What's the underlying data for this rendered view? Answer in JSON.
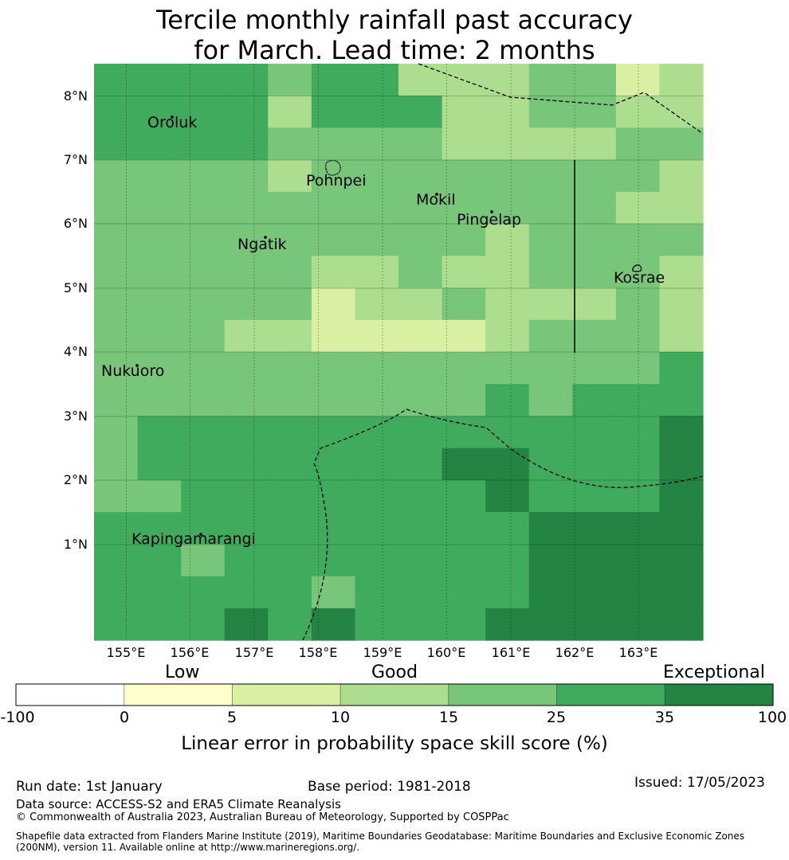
{
  "title": {
    "line1": "Tercile monthly rainfall past accuracy",
    "line2": "for March. Lead time: 2 months"
  },
  "map": {
    "lat_labels": [
      "8°N",
      "7°N",
      "6°N",
      "5°N",
      "4°N",
      "3°N",
      "2°N",
      "1°N"
    ],
    "lon_labels": [
      "155°E",
      "156°E",
      "157°E",
      "158°E",
      "159°E",
      "160°E",
      "161°E",
      "162°E",
      "163°E"
    ],
    "places": [
      "Oroluk",
      "Pohnpei",
      "Mokil",
      "Pingelap",
      "Ngatik",
      "Kosrae",
      "Nukuoro",
      "Kapingamarangi"
    ],
    "grid_values": [
      [
        25,
        25,
        25,
        25,
        20,
        25,
        25,
        12,
        12,
        12,
        20,
        20,
        7,
        12
      ],
      [
        25,
        25,
        25,
        25,
        12,
        25,
        25,
        25,
        12,
        12,
        20,
        20,
        12,
        12
      ],
      [
        25,
        25,
        25,
        25,
        20,
        20,
        20,
        20,
        12,
        12,
        12,
        12,
        20,
        20
      ],
      [
        20,
        20,
        20,
        20,
        12,
        20,
        20,
        20,
        20,
        20,
        20,
        20,
        20,
        12
      ],
      [
        20,
        20,
        20,
        20,
        20,
        20,
        20,
        20,
        20,
        20,
        20,
        20,
        12,
        12
      ],
      [
        20,
        20,
        20,
        20,
        20,
        20,
        20,
        20,
        20,
        12,
        20,
        20,
        20,
        20
      ],
      [
        20,
        20,
        20,
        20,
        20,
        12,
        12,
        20,
        12,
        12,
        20,
        20,
        20,
        12
      ],
      [
        20,
        20,
        20,
        20,
        20,
        7,
        12,
        12,
        20,
        12,
        12,
        12,
        20,
        12
      ],
      [
        20,
        20,
        20,
        12,
        12,
        7,
        7,
        7,
        7,
        12,
        20,
        20,
        20,
        12
      ],
      [
        20,
        20,
        20,
        20,
        20,
        20,
        20,
        20,
        20,
        20,
        20,
        20,
        20,
        30
      ],
      [
        20,
        20,
        20,
        20,
        20,
        20,
        20,
        20,
        20,
        30,
        20,
        30,
        30,
        30
      ],
      [
        20,
        30,
        30,
        30,
        30,
        30,
        30,
        30,
        30,
        30,
        30,
        30,
        30,
        40
      ],
      [
        20,
        30,
        30,
        30,
        30,
        30,
        30,
        30,
        40,
        40,
        30,
        30,
        30,
        40
      ],
      [
        20,
        20,
        30,
        30,
        30,
        30,
        30,
        30,
        30,
        40,
        30,
        30,
        30,
        40
      ],
      [
        30,
        30,
        30,
        30,
        30,
        30,
        30,
        30,
        30,
        30,
        40,
        40,
        40,
        40
      ],
      [
        30,
        30,
        20,
        30,
        30,
        30,
        30,
        30,
        30,
        30,
        40,
        40,
        40,
        40
      ],
      [
        30,
        30,
        30,
        30,
        30,
        20,
        30,
        30,
        30,
        30,
        40,
        40,
        40,
        40
      ],
      [
        30,
        30,
        30,
        40,
        30,
        40,
        30,
        30,
        30,
        40,
        40,
        40,
        40,
        40
      ]
    ]
  },
  "colorbar": {
    "category_labels": [
      "Low",
      "Good",
      "Exceptional"
    ],
    "tick_labels": [
      "-100",
      "0",
      "5",
      "10",
      "15",
      "25",
      "35",
      "100"
    ],
    "colors": [
      "#ffffff",
      "#ffffcc",
      "#d9f0a3",
      "#addd8e",
      "#78c679",
      "#41ab5d",
      "#238443"
    ],
    "title": "Linear error in probability space skill score (%)"
  },
  "footer": {
    "run_date": "Run date: 1st January",
    "base_period": "Base period: 1981-2018",
    "issued": "Issued: 17/05/2023",
    "data_source": "Data source: ACCESS-S2 and ERA5 Climate Reanalysis",
    "copyright": "© Commonwealth of Australia 2023, Australian Bureau of Meteorology, Supported by COSPPac",
    "shapefile_line1": "Shapefile data extracted from Flanders Marine Institute (2019), Maritime Boundaries Geodatabase: Maritime Boundaries and Exclusive Economic Zones",
    "shapefile_line2": "(200NM), version 11. Available online at http://www.marineregions.org/."
  }
}
